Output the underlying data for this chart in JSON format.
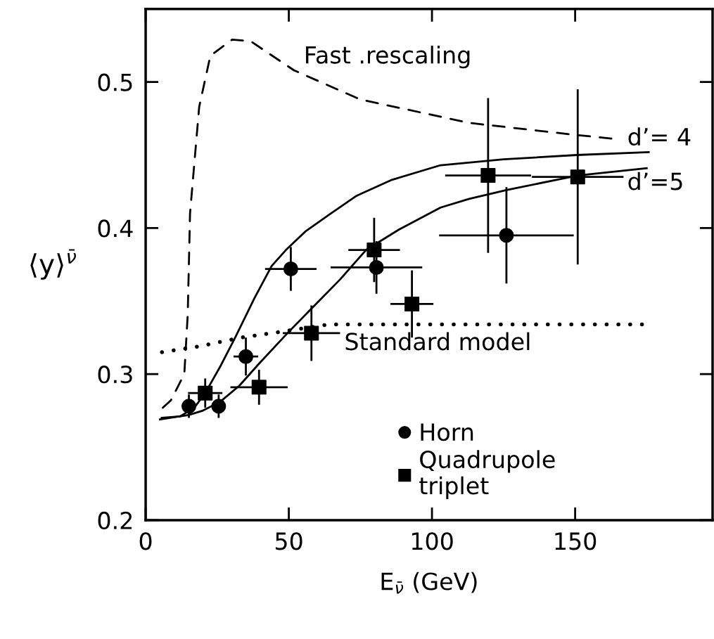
{
  "chart_data": {
    "type": "line",
    "xlabel": "E$_{ν̄}$ (GeV)",
    "ylabel": "⟨y⟩$^{ν̄}$",
    "xlim": [
      0,
      198
    ],
    "ylim": [
      0.2,
      0.55
    ],
    "xticks": [
      0,
      50,
      100,
      150
    ],
    "yticks": [
      0.2,
      0.3,
      0.4,
      0.5
    ],
    "grid": false,
    "legend": "bottom",
    "series": [
      {
        "name": "Fast .rescaling",
        "line_style": "dashed",
        "color": "#000000",
        "x": [
          6,
          8.8,
          13.5,
          14.7,
          15.5,
          18.7,
          22.6,
          30.2,
          36.6,
          51.8,
          75,
          113,
          149,
          164
        ],
        "values": [
          0.277,
          0.282,
          0.3,
          0.341,
          0.41,
          0.483,
          0.518,
          0.529,
          0.528,
          0.508,
          0.488,
          0.472,
          0.464,
          0.461
        ]
      },
      {
        "name": "d’= 4",
        "line_style": "solid",
        "color": "#000000",
        "x": [
          5.6,
          12,
          17,
          20.8,
          26,
          31,
          38,
          44,
          49,
          56,
          64,
          73.6,
          86,
          103,
          125,
          150.6,
          175.7
        ],
        "values": [
          0.27,
          0.271,
          0.277,
          0.287,
          0.305,
          0.324,
          0.352,
          0.374,
          0.385,
          0.398,
          0.409,
          0.422,
          0.433,
          0.443,
          0.447,
          0.45,
          0.452
        ]
      },
      {
        "name": "d’=5",
        "line_style": "solid",
        "color": "#000000",
        "x": [
          5,
          15,
          20,
          26,
          32.7,
          40,
          50,
          59,
          68,
          77,
          88.5,
          103,
          113,
          126,
          151,
          175
        ],
        "values": [
          0.269,
          0.272,
          0.275,
          0.281,
          0.292,
          0.308,
          0.329,
          0.347,
          0.365,
          0.385,
          0.399,
          0.414,
          0.42,
          0.426,
          0.436,
          0.441
        ]
      },
      {
        "name": "Standard model",
        "line_style": "dotted",
        "color": "#000000",
        "x": [
          5.7,
          18.7,
          33.4,
          47.4,
          63.9,
          88,
          174
        ],
        "values": [
          0.315,
          0.319,
          0.325,
          0.329,
          0.334,
          0.334,
          0.334
        ]
      },
      {
        "type": "scatter",
        "name": "Horn",
        "marker": "circle",
        "color": "#000000",
        "x": [
          15.1,
          25.5,
          35,
          50.7,
          80.6,
          126
        ],
        "values": [
          0.278,
          0.278,
          0.312,
          0.372,
          0.373,
          0.395
        ],
        "errors": [
          0.008,
          0.008,
          0.013,
          0.015,
          0.018,
          0.033
        ],
        "xerrors": [
          2.5,
          2.5,
          4.3,
          9,
          16,
          23.5
        ]
      },
      {
        "type": "scatter",
        "name": "Quadrupole\ntriplet",
        "marker": "square",
        "color": "#000000",
        "x": [
          20.8,
          39.6,
          57.9,
          79.8,
          93,
          119.6,
          150.9
        ],
        "values": [
          0.287,
          0.291,
          0.328,
          0.385,
          0.348,
          0.436,
          0.435
        ],
        "errors": [
          0.01,
          0.012,
          0.019,
          0.022,
          0.023,
          0.053,
          0.06
        ],
        "xerrors": [
          6,
          10,
          10,
          9,
          7.5,
          15,
          16
        ]
      }
    ]
  }
}
